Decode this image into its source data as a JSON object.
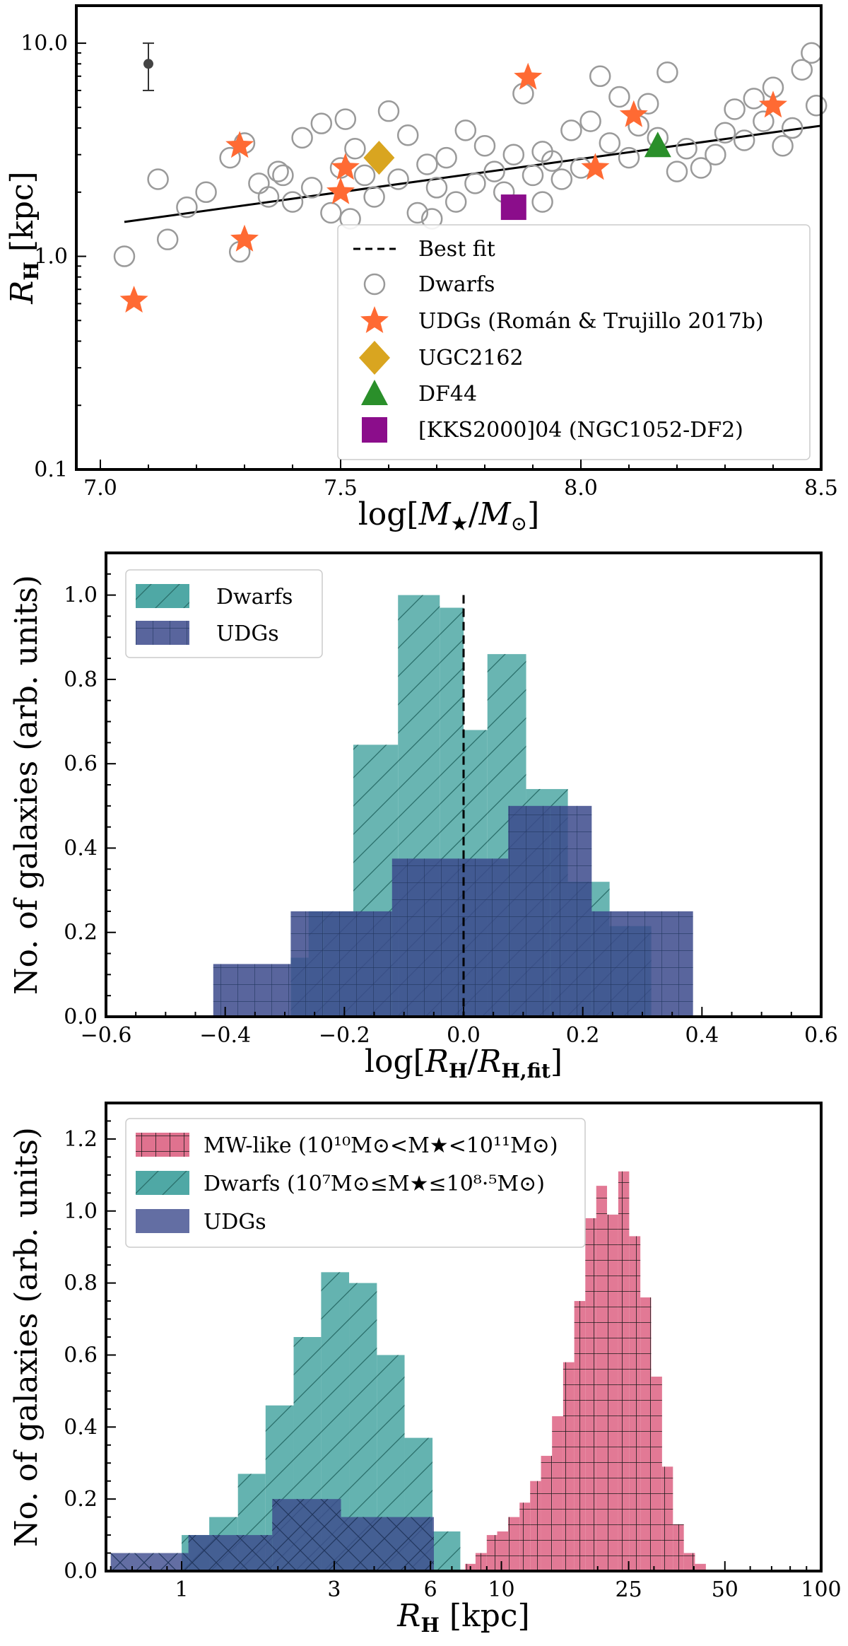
{
  "chart_data": [
    {
      "type": "scatter",
      "xlabel": "log[M★/M⊙]",
      "ylabel": "RH [kpc]",
      "xlim": [
        6.95,
        8.5
      ],
      "ylim": [
        0.1,
        15
      ],
      "yscale": "log",
      "x_ticks": [
        "7.0",
        "7.5",
        "8.0",
        "8.5"
      ],
      "y_ticks": [
        "0.1",
        "1.0",
        "10.0"
      ],
      "legend": [
        "Best fit",
        "Dwarfs",
        "UDGs (Román & Trujillo 2017b)",
        "UGC2162",
        "DF44",
        "[KKS2000]04 (NGC1052-DF2)"
      ],
      "legend_position": "lower-right",
      "best_fit": {
        "x": [
          7.05,
          8.5
        ],
        "y": [
          1.45,
          4.1
        ]
      },
      "error_bar": {
        "x": 7.1,
        "y": 8.0,
        "ylow": 6.0,
        "yhigh": 10.0
      },
      "series": [
        {
          "name": "Dwarfs",
          "points": [
            [
              7.05,
              1.0
            ],
            [
              7.12,
              2.3
            ],
            [
              7.18,
              1.7
            ],
            [
              7.22,
              2.0
            ],
            [
              7.27,
              2.9
            ],
            [
              7.3,
              3.4
            ],
            [
              7.33,
              2.2
            ],
            [
              7.35,
              1.9
            ],
            [
              7.37,
              2.5
            ],
            [
              7.38,
              2.4
            ],
            [
              7.4,
              1.8
            ],
            [
              7.42,
              3.6
            ],
            [
              7.44,
              2.1
            ],
            [
              7.46,
              4.2
            ],
            [
              7.48,
              1.6
            ],
            [
              7.5,
              2.6
            ],
            [
              7.52,
              1.5
            ],
            [
              7.53,
              3.2
            ],
            [
              7.55,
              2.4
            ],
            [
              7.57,
              1.9
            ],
            [
              7.6,
              4.8
            ],
            [
              7.62,
              2.3
            ],
            [
              7.64,
              3.7
            ],
            [
              7.66,
              1.6
            ],
            [
              7.68,
              2.7
            ],
            [
              7.7,
              2.1
            ],
            [
              7.72,
              2.9
            ],
            [
              7.74,
              1.8
            ],
            [
              7.76,
              3.9
            ],
            [
              7.78,
              2.2
            ],
            [
              7.8,
              3.3
            ],
            [
              7.82,
              2.5
            ],
            [
              7.84,
              2.0
            ],
            [
              7.86,
              3.0
            ],
            [
              7.88,
              5.8
            ],
            [
              7.9,
              2.4
            ],
            [
              7.92,
              3.1
            ],
            [
              7.94,
              2.8
            ],
            [
              7.96,
              2.3
            ],
            [
              7.98,
              3.9
            ],
            [
              8.0,
              2.6
            ],
            [
              8.02,
              4.3
            ],
            [
              8.04,
              7.0
            ],
            [
              8.06,
              3.4
            ],
            [
              8.08,
              5.6
            ],
            [
              8.1,
              2.9
            ],
            [
              8.12,
              4.1
            ],
            [
              8.14,
              5.2
            ],
            [
              8.16,
              3.6
            ],
            [
              8.18,
              7.3
            ],
            [
              8.2,
              2.5
            ],
            [
              8.22,
              3.2
            ],
            [
              8.25,
              2.6
            ],
            [
              8.28,
              3.0
            ],
            [
              8.3,
              3.8
            ],
            [
              8.32,
              4.9
            ],
            [
              8.34,
              3.5
            ],
            [
              8.36,
              5.5
            ],
            [
              8.38,
              4.3
            ],
            [
              8.4,
              6.2
            ],
            [
              8.42,
              3.3
            ],
            [
              8.44,
              4.0
            ],
            [
              8.46,
              7.5
            ],
            [
              8.48,
              9.0
            ],
            [
              8.49,
              5.1
            ],
            [
              7.14,
              1.2
            ],
            [
              7.29,
              1.05
            ],
            [
              7.51,
              4.4
            ],
            [
              7.69,
              1.5
            ],
            [
              7.92,
              1.8
            ]
          ]
        },
        {
          "name": "UDGs (Román & Trujillo 2017b)",
          "points": [
            [
              7.07,
              0.62
            ],
            [
              7.29,
              3.3
            ],
            [
              7.3,
              1.2
            ],
            [
              7.5,
              2.0
            ],
            [
              7.51,
              2.6
            ],
            [
              7.89,
              6.9
            ],
            [
              8.03,
              2.6
            ],
            [
              8.11,
              4.6
            ],
            [
              8.4,
              5.1
            ]
          ]
        },
        {
          "name": "UGC2162",
          "points": [
            [
              7.58,
              2.9
            ]
          ]
        },
        {
          "name": "DF44",
          "points": [
            [
              8.16,
              3.3
            ]
          ]
        },
        {
          "name": "[KKS2000]04 (NGC1052-DF2)",
          "points": [
            [
              7.86,
              1.7
            ]
          ]
        }
      ]
    },
    {
      "type": "bar",
      "subtype": "histogram",
      "xlabel": "log[RH/RH,fit]",
      "ylabel": "No. of galaxies (arb. units)",
      "xlim": [
        -0.6,
        0.6
      ],
      "ylim": [
        0,
        1.1
      ],
      "x_ticks": [
        "−0.6",
        "−0.4",
        "−0.2",
        "0.0",
        "0.2",
        "0.4",
        "0.6"
      ],
      "y_ticks": [
        "0.0",
        "0.2",
        "0.4",
        "0.6",
        "0.8",
        "1.0"
      ],
      "legend": [
        "Dwarfs",
        "UDGs"
      ],
      "legend_position": "top-left",
      "vline": 0.0,
      "series": [
        {
          "name": "Dwarfs",
          "bin_edges": [
            -0.29,
            -0.26,
            -0.185,
            -0.11,
            -0.04,
            0.0,
            0.04,
            0.105,
            0.175,
            0.245,
            0.315,
            0.36
          ],
          "values": [
            0.14,
            0.25,
            0.645,
            1.0,
            0.97,
            0.68,
            0.86,
            0.54,
            0.32,
            0.215,
            0.0
          ]
        },
        {
          "name": "UDGs",
          "bin_edges": [
            -0.42,
            -0.29,
            -0.235,
            -0.12,
            -0.07,
            0.075,
            0.145,
            0.215,
            0.385
          ],
          "values": [
            0.125,
            0.25,
            0.25,
            0.375,
            0.375,
            0.5,
            0.5,
            0.25
          ]
        }
      ]
    },
    {
      "type": "bar",
      "subtype": "histogram",
      "xlabel": "RH [kpc]",
      "ylabel": "No. of galaxies (arb. units)",
      "xscale": "log",
      "xlim": [
        0.58,
        100
      ],
      "ylim": [
        0,
        1.3
      ],
      "x_ticks": [
        "1",
        "3",
        "6",
        "10",
        "25",
        "50",
        "100"
      ],
      "y_ticks": [
        "0.0",
        "0.2",
        "0.4",
        "0.6",
        "0.8",
        "1.0",
        "1.2"
      ],
      "legend": [
        "MW-like (10¹⁰M⊙<M★<10¹¹M⊙)",
        "Dwarfs (10⁷M⊙≤M★≤10⁸·⁵M⊙)",
        "UDGs"
      ],
      "legend_position": "top-left",
      "series": [
        {
          "name": "MW-like",
          "bin_edges": [
            7.7,
            8.3,
            9.0,
            9.7,
            10.5,
            11.4,
            12.3,
            13.3,
            14.4,
            15.6,
            16.9,
            18.3,
            19.8,
            21.4,
            23.2,
            25.1,
            27.2,
            29.4,
            31.8,
            34.4,
            37.2,
            40.3,
            43.6
          ],
          "values": [
            0.02,
            0.05,
            0.1,
            0.11,
            0.15,
            0.19,
            0.25,
            0.32,
            0.43,
            0.58,
            0.75,
            0.98,
            1.07,
            0.99,
            1.11,
            0.93,
            0.76,
            0.54,
            0.29,
            0.13,
            0.05,
            0.02
          ]
        },
        {
          "name": "Dwarfs",
          "bin_edges": [
            1.0,
            1.22,
            1.5,
            1.83,
            2.24,
            2.73,
            3.34,
            4.08,
            4.98,
            6.09,
            7.44
          ],
          "values": [
            0.1,
            0.15,
            0.27,
            0.46,
            0.65,
            0.83,
            0.8,
            0.6,
            0.37,
            0.11
          ]
        },
        {
          "name": "UDGs",
          "bin_edges": [
            0.6,
            1.05,
            1.92,
            3.15,
            6.15
          ],
          "values": [
            0.05,
            0.1,
            0.2,
            0.15
          ]
        }
      ]
    }
  ]
}
